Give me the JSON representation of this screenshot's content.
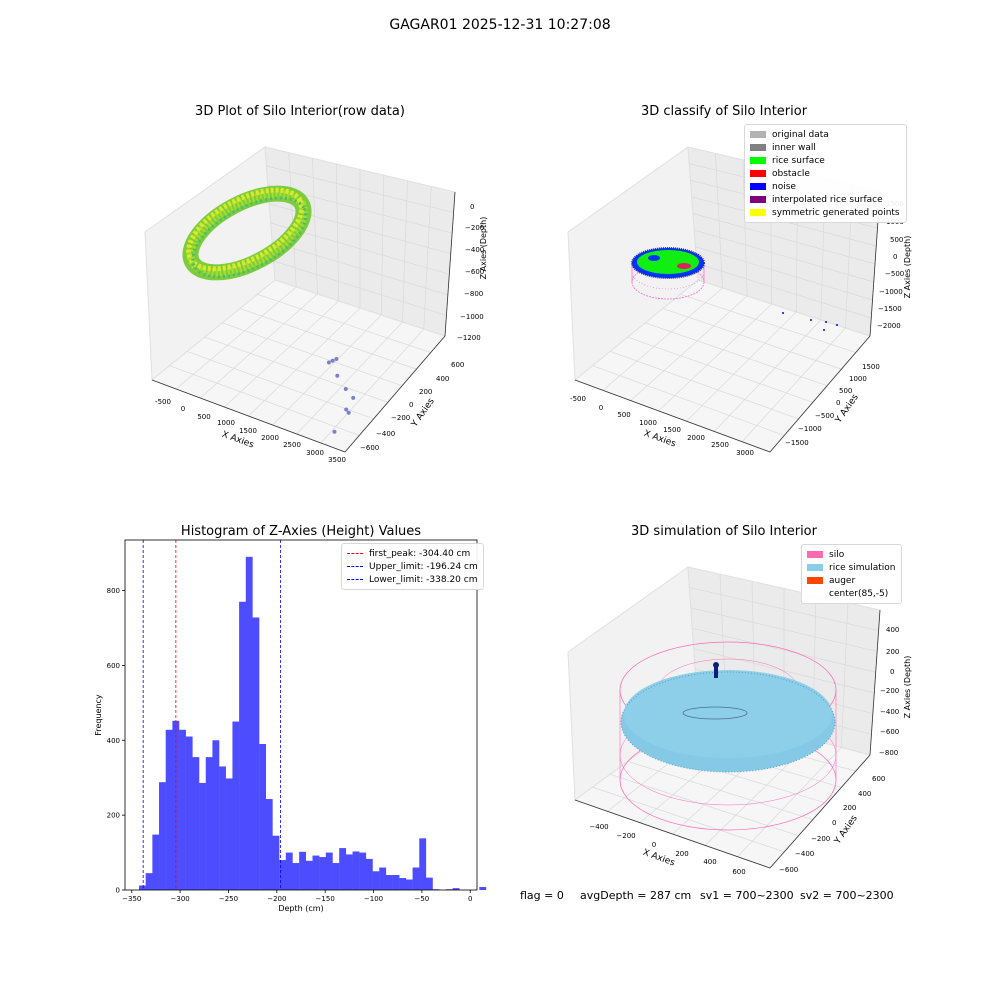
{
  "figure": {
    "suptitle": "GAGAR01 2025-12-31 10:27:08",
    "footer": {
      "flag": "flag = 0",
      "avg_depth": "avgDepth = 287 cm",
      "sv1": "sv1 = 700~2300",
      "sv2": "sv2 = 700~2300"
    }
  },
  "colors": {
    "hist_bar": "#4d4dff",
    "first_peak_line": "#ff0000",
    "limit_line": "#0000ff",
    "original_data": "#b3b3b3",
    "inner_wall": "#808080",
    "rice_surface": "#00ff00",
    "obstacle": "#ff0000",
    "noise": "#0000ff",
    "interpolated": "#800080",
    "symmetric": "#ffff00",
    "silo": "#ff69b4",
    "rice_sim": "#87ceeb",
    "auger": "#ff4500"
  },
  "chart_data": [
    {
      "type": "scatter",
      "title": "3D Plot of Silo Interior(row data)",
      "xlabel": "X Axies",
      "ylabel": "Y Axies",
      "zlabel": "Z Axies (Depth)",
      "xticks": [
        "-500",
        "0",
        "500",
        "1000",
        "1500",
        "2000",
        "2500",
        "3000",
        "3500"
      ],
      "yticks": [
        "600",
        "400",
        "200",
        "0",
        "−200",
        "−400",
        "−600"
      ],
      "zticks": [
        "0",
        "−200",
        "−400",
        "−600",
        "−800",
        "−1000",
        "−1200"
      ],
      "xlim": [
        -600,
        3500
      ],
      "ylim": [
        -700,
        700
      ],
      "zlim": [
        -1300,
        100
      ],
      "outliers": [
        {
          "x": 2350,
          "y": -150,
          "z": -1050
        },
        {
          "x": 2400,
          "y": -130,
          "z": -1040
        },
        {
          "x": 2450,
          "y": -110,
          "z": -1030
        },
        {
          "x": 2600,
          "y": -200,
          "z": -1100
        },
        {
          "x": 2850,
          "y": -250,
          "z": -1150
        },
        {
          "x": 3050,
          "y": -280,
          "z": -1180
        },
        {
          "x": 3000,
          "y": -350,
          "z": -1250
        },
        {
          "x": 3100,
          "y": -380,
          "z": -1240
        },
        {
          "x": 3050,
          "y": -550,
          "z": -1300
        }
      ]
    },
    {
      "type": "scatter",
      "title": "3D classify of Silo Interior",
      "xlabel": "X Axies",
      "ylabel": "Y Axies",
      "zlabel": "Z Axies (Depth)",
      "xticks": [
        "-500",
        "0",
        "500",
        "1000",
        "1500",
        "2000",
        "2500",
        "3000"
      ],
      "yticks": [
        "1500",
        "1000",
        "500",
        "0",
        "−500",
        "−1000",
        "−1500"
      ],
      "zticks": [
        "1500",
        "1000",
        "500",
        "0",
        "−500",
        "−1000",
        "−1500",
        "−2000"
      ],
      "legend": [
        {
          "label": "original data",
          "color_key": "original_data"
        },
        {
          "label": "inner wall",
          "color_key": "inner_wall"
        },
        {
          "label": "rice surface",
          "color_key": "rice_surface"
        },
        {
          "label": "obstacle",
          "color_key": "obstacle"
        },
        {
          "label": "noise",
          "color_key": "noise"
        },
        {
          "label": "interpolated rice surface",
          "color_key": "interpolated"
        },
        {
          "label": "symmetric generated points",
          "color_key": "symmetric"
        }
      ],
      "legend_position": "top-right"
    },
    {
      "type": "bar",
      "title": "Histogram of Z-Axies (Height) Values",
      "xlabel": "Depth (cm)",
      "ylabel": "Frequency",
      "xlim": [
        -357,
        7
      ],
      "ylim": [
        0,
        935
      ],
      "xticks": [
        -350,
        -300,
        -250,
        -200,
        -150,
        -100,
        -50,
        0
      ],
      "yticks": [
        0,
        200,
        400,
        600,
        800
      ],
      "bin_start": -342.5,
      "bin_width": 6.9,
      "values": [
        12,
        45,
        148,
        288,
        428,
        452,
        428,
        410,
        355,
        286,
        355,
        400,
        330,
        298,
        450,
        770,
        890,
        728,
        390,
        243,
        145,
        80,
        100,
        72,
        102,
        78,
        92,
        88,
        100,
        72,
        112,
        95,
        103,
        100,
        83,
        50,
        60,
        40,
        40,
        32,
        28,
        60,
        138,
        33,
        2,
        0,
        2,
        5,
        0,
        0,
        0,
        8
      ],
      "vlines": [
        {
          "label": "first_peak: -304.40 cm",
          "x": -304.4,
          "color_key": "first_peak_line"
        },
        {
          "label": "Upper_limit: -196.24 cm",
          "x": -196.24,
          "color_key": "limit_line"
        },
        {
          "label": "Lower_limit: -338.20 cm",
          "x": -338.2,
          "color_key": "limit_line"
        }
      ],
      "legend_position": "top-right"
    },
    {
      "type": "scatter",
      "title": "3D simulation of Silo Interior",
      "xlabel": "X Axies",
      "ylabel": "Y Axies",
      "zlabel": "Z Axies (Depth)",
      "xticks": [
        "−400",
        "−200",
        "0",
        "200",
        "400",
        "600"
      ],
      "yticks": [
        "600",
        "400",
        "200",
        "0",
        "−200",
        "−400",
        "−600"
      ],
      "zticks": [
        "400",
        "200",
        "0",
        "−200",
        "−400",
        "−600",
        "−800"
      ],
      "legend": [
        {
          "label": "silo",
          "color_key": "silo"
        },
        {
          "label": "rice simulation",
          "color_key": "rice_sim"
        },
        {
          "label": "auger",
          "color_key": "auger"
        },
        {
          "label": "center(85,-5)",
          "color_key": ""
        }
      ],
      "legend_position": "top-right"
    }
  ]
}
